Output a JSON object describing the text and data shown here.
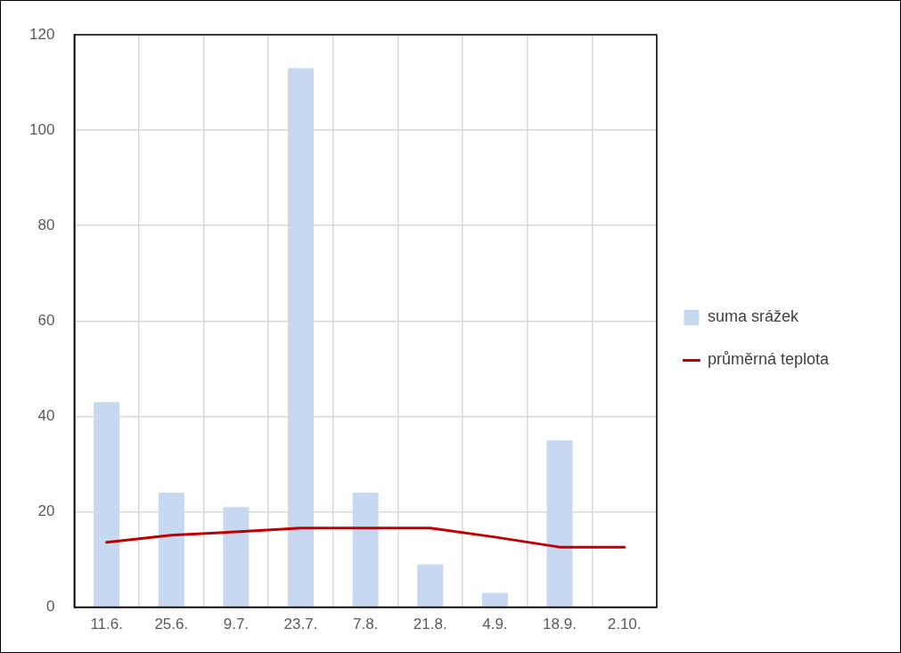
{
  "chart_data": {
    "type": "bar",
    "categories": [
      "11.6.",
      "25.6.",
      "9.7.",
      "23.7.",
      "7.8.",
      "21.8.",
      "4.9.",
      "18.9.",
      "2.10."
    ],
    "series": [
      {
        "name": "suma srážek",
        "color": "#c6d9f0",
        "values": [
          43,
          24,
          21,
          113,
          24,
          9,
          3,
          35,
          0
        ]
      },
      {
        "name": "průměrná teplota",
        "type": "line",
        "color": "#c00000",
        "values": [
          13.6,
          15.1,
          15.8,
          16.6,
          16.6,
          16.6,
          14.7,
          12.6,
          12.6
        ]
      }
    ],
    "ylim": [
      0,
      120
    ],
    "yticks": [
      0,
      20,
      40,
      60,
      80,
      100,
      120
    ],
    "grid": true,
    "legend": "right",
    "marker": "none"
  }
}
